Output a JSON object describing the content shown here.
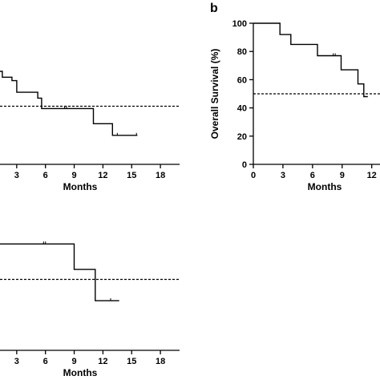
{
  "chart_data": [
    {
      "id": "panel-a-top",
      "type": "line",
      "panel_label": "",
      "title": "",
      "xlabel": "Months",
      "ylabel": "",
      "xlim": [
        0,
        20
      ],
      "ylim": [
        0,
        100
      ],
      "xticks": [
        3,
        6,
        9,
        12,
        15,
        18
      ],
      "yticks": [],
      "grid": false,
      "median_line": 50,
      "series": [
        {
          "points": [
            [
              0,
              80
            ],
            [
              1.5,
              80
            ],
            [
              1.5,
              80
            ],
            [
              1.5,
              75
            ],
            [
              2.5,
              75
            ],
            [
              2.5,
              72
            ],
            [
              3,
              72
            ],
            [
              3,
              62
            ],
            [
              5.2,
              62
            ],
            [
              5.2,
              57
            ],
            [
              5.6,
              57
            ],
            [
              5.6,
              48
            ],
            [
              11,
              48
            ],
            [
              11,
              35
            ],
            [
              13,
              35
            ],
            [
              13,
              25
            ],
            [
              15.6,
              25
            ]
          ],
          "censor": [
            [
              8,
              48
            ],
            [
              8.2,
              48
            ],
            [
              13.5,
              25
            ],
            [
              15.5,
              25
            ]
          ]
        }
      ]
    },
    {
      "id": "panel-b",
      "type": "line",
      "panel_label": "b",
      "title": "",
      "xlabel": "Months",
      "ylabel": "Overall Survival (%)",
      "xlim": [
        0,
        13
      ],
      "ylim": [
        0,
        100
      ],
      "xticks": [
        0,
        3,
        6,
        9,
        12
      ],
      "ytick_labels": [
        "0",
        "20",
        "40",
        "60",
        "80",
        "100"
      ],
      "yticks": [
        0,
        20,
        40,
        60,
        80,
        100
      ],
      "grid": false,
      "median_line": 50,
      "series": [
        {
          "points": [
            [
              0,
              100
            ],
            [
              2.7,
              100
            ],
            [
              2.7,
              92
            ],
            [
              3.8,
              92
            ],
            [
              3.8,
              85
            ],
            [
              6.5,
              85
            ],
            [
              6.5,
              77
            ],
            [
              8.9,
              77
            ],
            [
              8.9,
              67
            ],
            [
              10.6,
              67
            ],
            [
              10.6,
              57
            ],
            [
              11.2,
              57
            ],
            [
              11.2,
              48
            ],
            [
              11.6,
              48
            ]
          ],
          "censor": [
            [
              8.1,
              77
            ],
            [
              8.3,
              77
            ]
          ]
        }
      ]
    },
    {
      "id": "panel-bottom",
      "type": "line",
      "panel_label": "",
      "title": "",
      "xlabel": "Months",
      "ylabel": "",
      "xlim": [
        0,
        20
      ],
      "ylim": [
        0,
        100
      ],
      "xticks": [
        3,
        6,
        9,
        12,
        15,
        18
      ],
      "yticks": [],
      "grid": false,
      "median_line": 50,
      "series": [
        {
          "points": [
            [
              0,
              85
            ],
            [
              1,
              85
            ],
            [
              1,
              75
            ],
            [
              9,
              75
            ],
            [
              9,
              57
            ],
            [
              11.2,
              57
            ],
            [
              11.2,
              35
            ],
            [
              13.7,
              35
            ]
          ],
          "censor": [
            [
              5.8,
              75
            ],
            [
              6,
              75
            ],
            [
              12.8,
              35
            ]
          ]
        }
      ]
    }
  ]
}
